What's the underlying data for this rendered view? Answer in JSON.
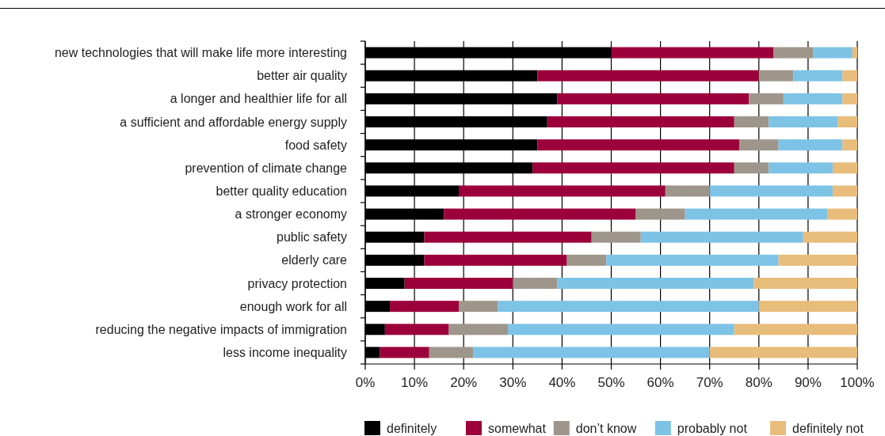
{
  "chart_data": {
    "type": "bar",
    "orientation": "horizontal",
    "stacked": true,
    "categories": [
      "new technologies that will make life more interesting",
      "better air quality",
      "a longer and healthier life for all",
      "a sufficient and affordable energy supply",
      "food safety",
      "prevention of climate change",
      "better quality education",
      "a stronger economy",
      "public safety",
      "elderly care",
      "privacy protection",
      "enough work for all",
      "reducing the negative impacts of immigration",
      "less income inequality"
    ],
    "series": [
      {
        "name": "definitely",
        "color": "#000000",
        "values": [
          50,
          35,
          39,
          37,
          35,
          34,
          19,
          16,
          12,
          12,
          8,
          5,
          4,
          3
        ]
      },
      {
        "name": "somewhat",
        "color": "#9c003a",
        "values": [
          33,
          45,
          39,
          38,
          41,
          41,
          42,
          39,
          34,
          29,
          22,
          14,
          13,
          10
        ]
      },
      {
        "name": "don’t know",
        "color": "#9e968a",
        "values": [
          8,
          7,
          7,
          7,
          8,
          7,
          9,
          10,
          10,
          8,
          9,
          8,
          12,
          9
        ]
      },
      {
        "name": "probably not",
        "color": "#7dc3e6",
        "values": [
          8,
          10,
          12,
          14,
          13,
          13,
          25,
          29,
          33,
          35,
          40,
          53,
          46,
          48
        ]
      },
      {
        "name": "definitely not",
        "color": "#e8bc7b",
        "values": [
          1,
          3,
          3,
          4,
          3,
          5,
          5,
          6,
          11,
          16,
          21,
          20,
          25,
          30
        ]
      }
    ],
    "xlim": [
      0,
      100
    ],
    "xticks": [
      {
        "value": 0,
        "label": "0%"
      },
      {
        "value": 10,
        "label": "10%"
      },
      {
        "value": 20,
        "label": "20%"
      },
      {
        "value": 30,
        "label": "30%"
      },
      {
        "value": 40,
        "label": "40%"
      },
      {
        "value": 50,
        "label": "50%"
      },
      {
        "value": 60,
        "label": "60%"
      },
      {
        "value": 70,
        "label": "70%"
      },
      {
        "value": 80,
        "label": "80%"
      },
      {
        "value": 90,
        "label": "90%"
      },
      {
        "value": 100,
        "label": "100%"
      }
    ],
    "grid": "x",
    "legend": "bottom"
  }
}
